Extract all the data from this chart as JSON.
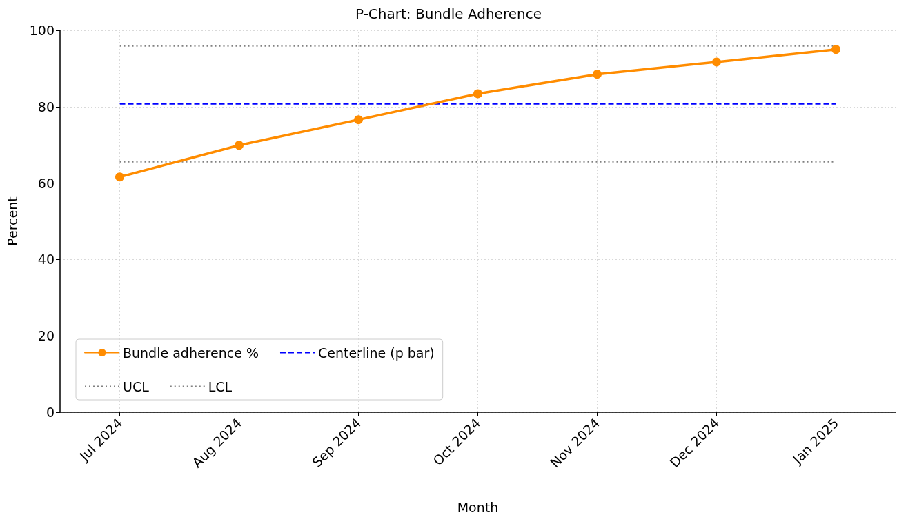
{
  "chart_data": {
    "type": "line",
    "title": "P-Chart: Bundle Adherence",
    "xlabel": "Month",
    "ylabel": "Percent",
    "categories": [
      "Jul 2024",
      "Aug 2024",
      "Sep 2024",
      "Oct 2024",
      "Nov 2024",
      "Dec 2024",
      "Jan 2025"
    ],
    "series": [
      {
        "name": "Bundle adherence %",
        "color": "#ff8c00",
        "values": [
          61.6,
          69.9,
          76.6,
          83.4,
          88.5,
          91.7,
          95.0
        ]
      }
    ],
    "ref_lines": [
      {
        "axis": "y",
        "value": 80.9,
        "label": "Centerline (p bar)",
        "color": "#0000ff",
        "line_style": "dashed"
      },
      {
        "axis": "y",
        "value": 96.0,
        "label": "UCL",
        "color": "#808080",
        "line_style": "dotted"
      },
      {
        "axis": "y",
        "value": 65.6,
        "label": "LCL",
        "color": "#808080",
        "line_style": "dotted"
      }
    ],
    "ylim": [
      0,
      100
    ],
    "yticks": [
      0,
      20,
      40,
      60,
      80,
      100
    ],
    "grid": true,
    "legend": "bottom left",
    "marker": "circle",
    "line_style": "solid"
  }
}
